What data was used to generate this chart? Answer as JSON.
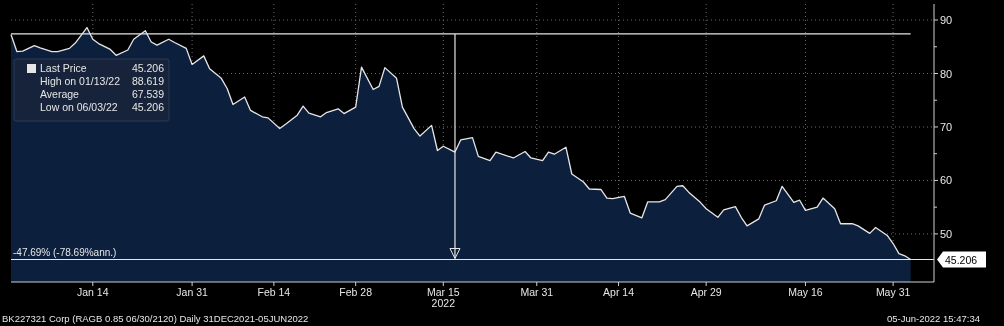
{
  "chart_data": {
    "type": "area",
    "xlabel": "2022",
    "x": [
      "2021-12-31",
      "2022-01-01",
      "2022-01-02",
      "2022-01-04",
      "2022-01-05",
      "2022-01-07",
      "2022-01-08",
      "2022-01-10",
      "2022-01-11",
      "2022-01-13",
      "2022-01-14",
      "2022-01-15",
      "2022-01-17",
      "2022-01-18",
      "2022-01-20",
      "2022-01-21",
      "2022-01-23",
      "2022-01-24",
      "2022-01-25",
      "2022-01-27",
      "2022-01-28",
      "2022-01-30",
      "2022-01-31",
      "2022-02-02",
      "2022-02-03",
      "2022-02-05",
      "2022-02-06",
      "2022-02-07",
      "2022-02-09",
      "2022-02-10",
      "2022-02-12",
      "2022-02-13",
      "2022-02-15",
      "2022-02-16",
      "2022-02-18",
      "2022-02-19",
      "2022-02-20",
      "2022-02-22",
      "2022-02-23",
      "2022-02-25",
      "2022-02-26",
      "2022-02-28",
      "2022-03-01",
      "2022-03-03",
      "2022-03-04",
      "2022-03-05",
      "2022-03-07",
      "2022-03-08",
      "2022-03-10",
      "2022-03-11",
      "2022-03-13",
      "2022-03-14",
      "2022-03-15",
      "2022-03-17",
      "2022-03-18",
      "2022-03-20",
      "2022-03-21",
      "2022-03-23",
      "2022-03-24",
      "2022-03-27",
      "2022-03-29",
      "2022-03-30",
      "2022-04-01",
      "2022-04-02",
      "2022-04-03",
      "2022-04-05",
      "2022-04-06",
      "2022-04-08",
      "2022-04-09",
      "2022-04-11",
      "2022-04-12",
      "2022-04-13",
      "2022-04-15",
      "2022-04-16",
      "2022-04-18",
      "2022-04-19",
      "2022-04-21",
      "2022-04-22",
      "2022-04-24",
      "2022-04-25",
      "2022-04-26",
      "2022-04-28",
      "2022-04-29",
      "2022-05-01",
      "2022-05-02",
      "2022-05-04",
      "2022-05-05",
      "2022-05-06",
      "2022-05-08",
      "2022-05-09",
      "2022-05-11",
      "2022-05-12",
      "2022-05-14",
      "2022-05-15",
      "2022-05-16",
      "2022-05-18",
      "2022-05-19",
      "2022-05-21",
      "2022-05-22",
      "2022-05-24",
      "2022-05-25",
      "2022-05-27",
      "2022-05-28",
      "2022-05-30",
      "2022-05-31",
      "2022-06-01",
      "2022-06-02",
      "2022-06-03"
    ],
    "series": [
      {
        "name": "Last Price",
        "color": "#e6e6e6",
        "values": [
          87.3,
          84.1,
          84.2,
          85.2,
          84.8,
          84.1,
          84.1,
          84.7,
          85.7,
          88.6,
          86.4,
          85.6,
          84.5,
          83.4,
          84.4,
          86.4,
          88.0,
          85.9,
          85.3,
          86.4,
          85.8,
          84.7,
          81.7,
          83.3,
          80.9,
          79.1,
          77.2,
          74.2,
          75.6,
          73.1,
          71.9,
          71.7,
          69.7,
          70.5,
          72.2,
          73.9,
          72.6,
          71.9,
          72.7,
          73.4,
          72.5,
          73.7,
          81.2,
          77.0,
          77.6,
          81.1,
          79.1,
          73.7,
          69.7,
          68.3,
          70.3,
          65.6,
          66.4,
          65.3,
          67.6,
          68.0,
          64.5,
          63.7,
          65.3,
          64.2,
          65.4,
          64.2,
          63.7,
          65.3,
          64.9,
          66.2,
          61.2,
          59.7,
          58.4,
          58.3,
          56.7,
          56.6,
          57.0,
          53.9,
          53.0,
          56.0,
          56.0,
          56.4,
          58.9,
          59.0,
          57.8,
          55.9,
          54.7,
          53.1,
          54.5,
          55.1,
          53.1,
          51.5,
          52.8,
          55.4,
          56.2,
          58.9,
          55.9,
          56.3,
          54.4,
          55.0,
          56.7,
          54.7,
          51.9,
          51.9,
          51.5,
          50.1,
          51.2,
          49.7,
          48.2,
          46.3,
          45.9,
          45.206
        ]
      }
    ],
    "xlim": [
      "2021-12-31",
      "2022-06-07"
    ],
    "xticks": [
      {
        "value": "2022-01-14",
        "label": "Jan 14"
      },
      {
        "value": "2022-01-31",
        "label": "Jan 31"
      },
      {
        "value": "2022-02-14",
        "label": "Feb 14"
      },
      {
        "value": "2022-02-28",
        "label": "Feb 28"
      },
      {
        "value": "2022-03-15",
        "label": "Mar 15"
      },
      {
        "value": "2022-03-31",
        "label": "Mar 31"
      },
      {
        "value": "2022-04-14",
        "label": "Apr 14"
      },
      {
        "value": "2022-04-29",
        "label": "Apr 29"
      },
      {
        "value": "2022-05-16",
        "label": "May 16"
      },
      {
        "value": "2022-05-31",
        "label": "May 31"
      }
    ],
    "ylim": [
      41,
      93
    ],
    "yticks": [
      50,
      {
        "value": 55,
        "label": null
      },
      60,
      {
        "value": 65,
        "label": null
      },
      70,
      {
        "value": 75,
        "label": null
      },
      80,
      {
        "value": 85,
        "label": null
      },
      90
    ],
    "grid": true,
    "legend": "top left",
    "ref_lines": [
      {
        "axis": "y",
        "value": 87.4,
        "color": "#e6e6e6"
      },
      {
        "axis": "y",
        "value": 45.206,
        "label": "-47.69% (-78.69%ann.)",
        "color": "#e6e6e6"
      },
      {
        "axis": "x",
        "value": "2022-03-17",
        "color": "#e6e6e6"
      }
    ],
    "annotations": [
      "45.206",
      "High on 01/13/22 88.619",
      "Average 67.539",
      "Low on 06/03/22 45.206",
      "45.206",
      "BK227321 Corp (RAGB 0.85 06/30/2120)  Daily 31DEC2021-05JUN2022",
      "05-Jun-2022 15:47:34"
    ]
  }
}
